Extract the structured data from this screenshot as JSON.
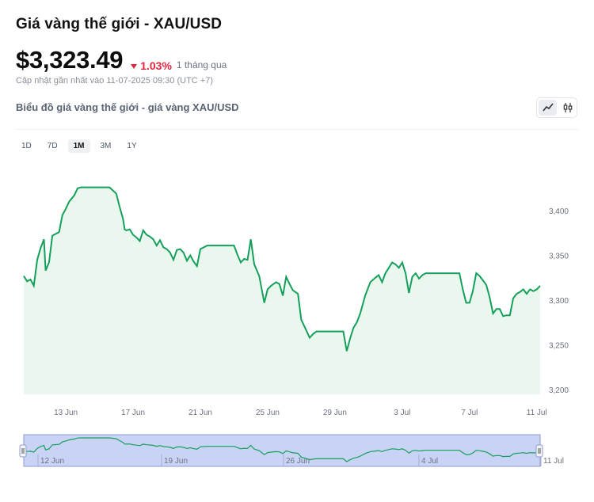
{
  "header": {
    "title": "Giá vàng thế giới - XAU/USD",
    "price": "$3,323.49",
    "change": "1.03%",
    "period": "1 tháng qua",
    "updated": "Cập nhật gần nhất vào 11-07-2025 09:30 (UTC +7)",
    "subtitle": "Biểu đồ giá vàng thế giới - giá vàng XAU/USD"
  },
  "colors": {
    "line": "#14a05a",
    "fill": "#e9f7ef",
    "down": "#e0263d",
    "navigator_fill": "#c9d3f6",
    "navigator_border": "#8e9cc9"
  },
  "icons": {
    "line_chart": "line-chart-icon",
    "candle_chart": "candlestick-icon"
  },
  "ranges": [
    {
      "label": "1D",
      "active": false
    },
    {
      "label": "7D",
      "active": false
    },
    {
      "label": "1M",
      "active": true
    },
    {
      "label": "3M",
      "active": false
    },
    {
      "label": "1Y",
      "active": false
    }
  ],
  "chart_data": {
    "type": "area",
    "x_tick_labels": [
      "13 Jun",
      "17 Jun",
      "21 Jun",
      "25 Jun",
      "29 Jun",
      "3 Jul",
      "7 Jul",
      "11 Jul"
    ],
    "y_tick_labels": [
      "3,400",
      "3,350",
      "3,300",
      "3,250",
      "3,200"
    ],
    "x_range": [
      10.5,
      41.2
    ],
    "ylim": [
      3200,
      3432
    ],
    "grid": false,
    "x": [
      10.5,
      10.7,
      10.9,
      11.1,
      11.3,
      11.5,
      11.7,
      11.8,
      12.0,
      12.2,
      12.4,
      12.6,
      12.8,
      13.0,
      13.2,
      13.5,
      13.7,
      13.9,
      14.1,
      14.4,
      14.8,
      15.2,
      15.6,
      16.0,
      16.2,
      16.4,
      16.5,
      16.6,
      16.8,
      17.0,
      17.2,
      17.4,
      17.6,
      17.8,
      18.0,
      18.2,
      18.4,
      18.6,
      18.8,
      19.0,
      19.2,
      19.4,
      19.6,
      19.8,
      20.0,
      20.2,
      20.4,
      20.6,
      20.8,
      21.0,
      21.4,
      22.0,
      22.5,
      23.0,
      23.2,
      23.4,
      23.6,
      23.8,
      24.0,
      24.2,
      24.5,
      24.8,
      25.0,
      25.2,
      25.5,
      25.7,
      25.9,
      26.1,
      26.3,
      26.5,
      26.8,
      27.0,
      27.2,
      27.5,
      27.7,
      27.9,
      28.1,
      28.5,
      29.0,
      29.5,
      29.7,
      29.9,
      30.1,
      30.3,
      30.5,
      30.8,
      31.1,
      31.4,
      31.6,
      31.8,
      32.0,
      32.2,
      32.4,
      32.6,
      32.8,
      33.0,
      33.2,
      33.4,
      33.6,
      33.8,
      34.0,
      34.2,
      34.4,
      34.6,
      34.8,
      35.0,
      35.3,
      35.6,
      36.0,
      36.4,
      36.6,
      36.8,
      37.0,
      37.2,
      37.4,
      37.6,
      37.8,
      38.0,
      38.2,
      38.4,
      38.6,
      38.8,
      39.0,
      39.2,
      39.4,
      39.6,
      39.8,
      40.0,
      40.2,
      40.4,
      40.6,
      40.8,
      41.0,
      41.2
    ],
    "y": [
      3327,
      3321,
      3323,
      3316,
      3345,
      3358,
      3368,
      3333,
      3342,
      3372,
      3374,
      3376,
      3395,
      3402,
      3410,
      3417,
      3425,
      3426,
      3426,
      3426,
      3426,
      3426,
      3426,
      3419,
      3404,
      3391,
      3379,
      3378,
      3379,
      3373,
      3370,
      3366,
      3378,
      3373,
      3371,
      3368,
      3361,
      3367,
      3359,
      3357,
      3353,
      3345,
      3356,
      3357,
      3353,
      3344,
      3350,
      3343,
      3338,
      3357,
      3361,
      3361,
      3361,
      3361,
      3351,
      3342,
      3346,
      3345,
      3368,
      3340,
      3327,
      3297,
      3312,
      3316,
      3320,
      3318,
      3305,
      3326,
      3318,
      3311,
      3307,
      3278,
      3270,
      3258,
      3262,
      3265,
      3265,
      3265,
      3265,
      3265,
      3243,
      3257,
      3269,
      3275,
      3285,
      3305,
      3320,
      3325,
      3328,
      3320,
      3330,
      3336,
      3342,
      3340,
      3336,
      3342,
      3330,
      3308,
      3326,
      3330,
      3324,
      3328,
      3330,
      3330,
      3330,
      3330,
      3330,
      3330,
      3330,
      3330,
      3312,
      3297,
      3297,
      3310,
      3330,
      3327,
      3322,
      3317,
      3303,
      3285,
      3290,
      3290,
      3282,
      3283,
      3283,
      3302,
      3307,
      3309,
      3312,
      3307,
      3312,
      3310,
      3312,
      3316
    ]
  },
  "navigator": {
    "tick_labels": [
      "12 Jun",
      "19 Jun",
      "26 Jun",
      "4 Jul",
      "11 Jul"
    ]
  }
}
